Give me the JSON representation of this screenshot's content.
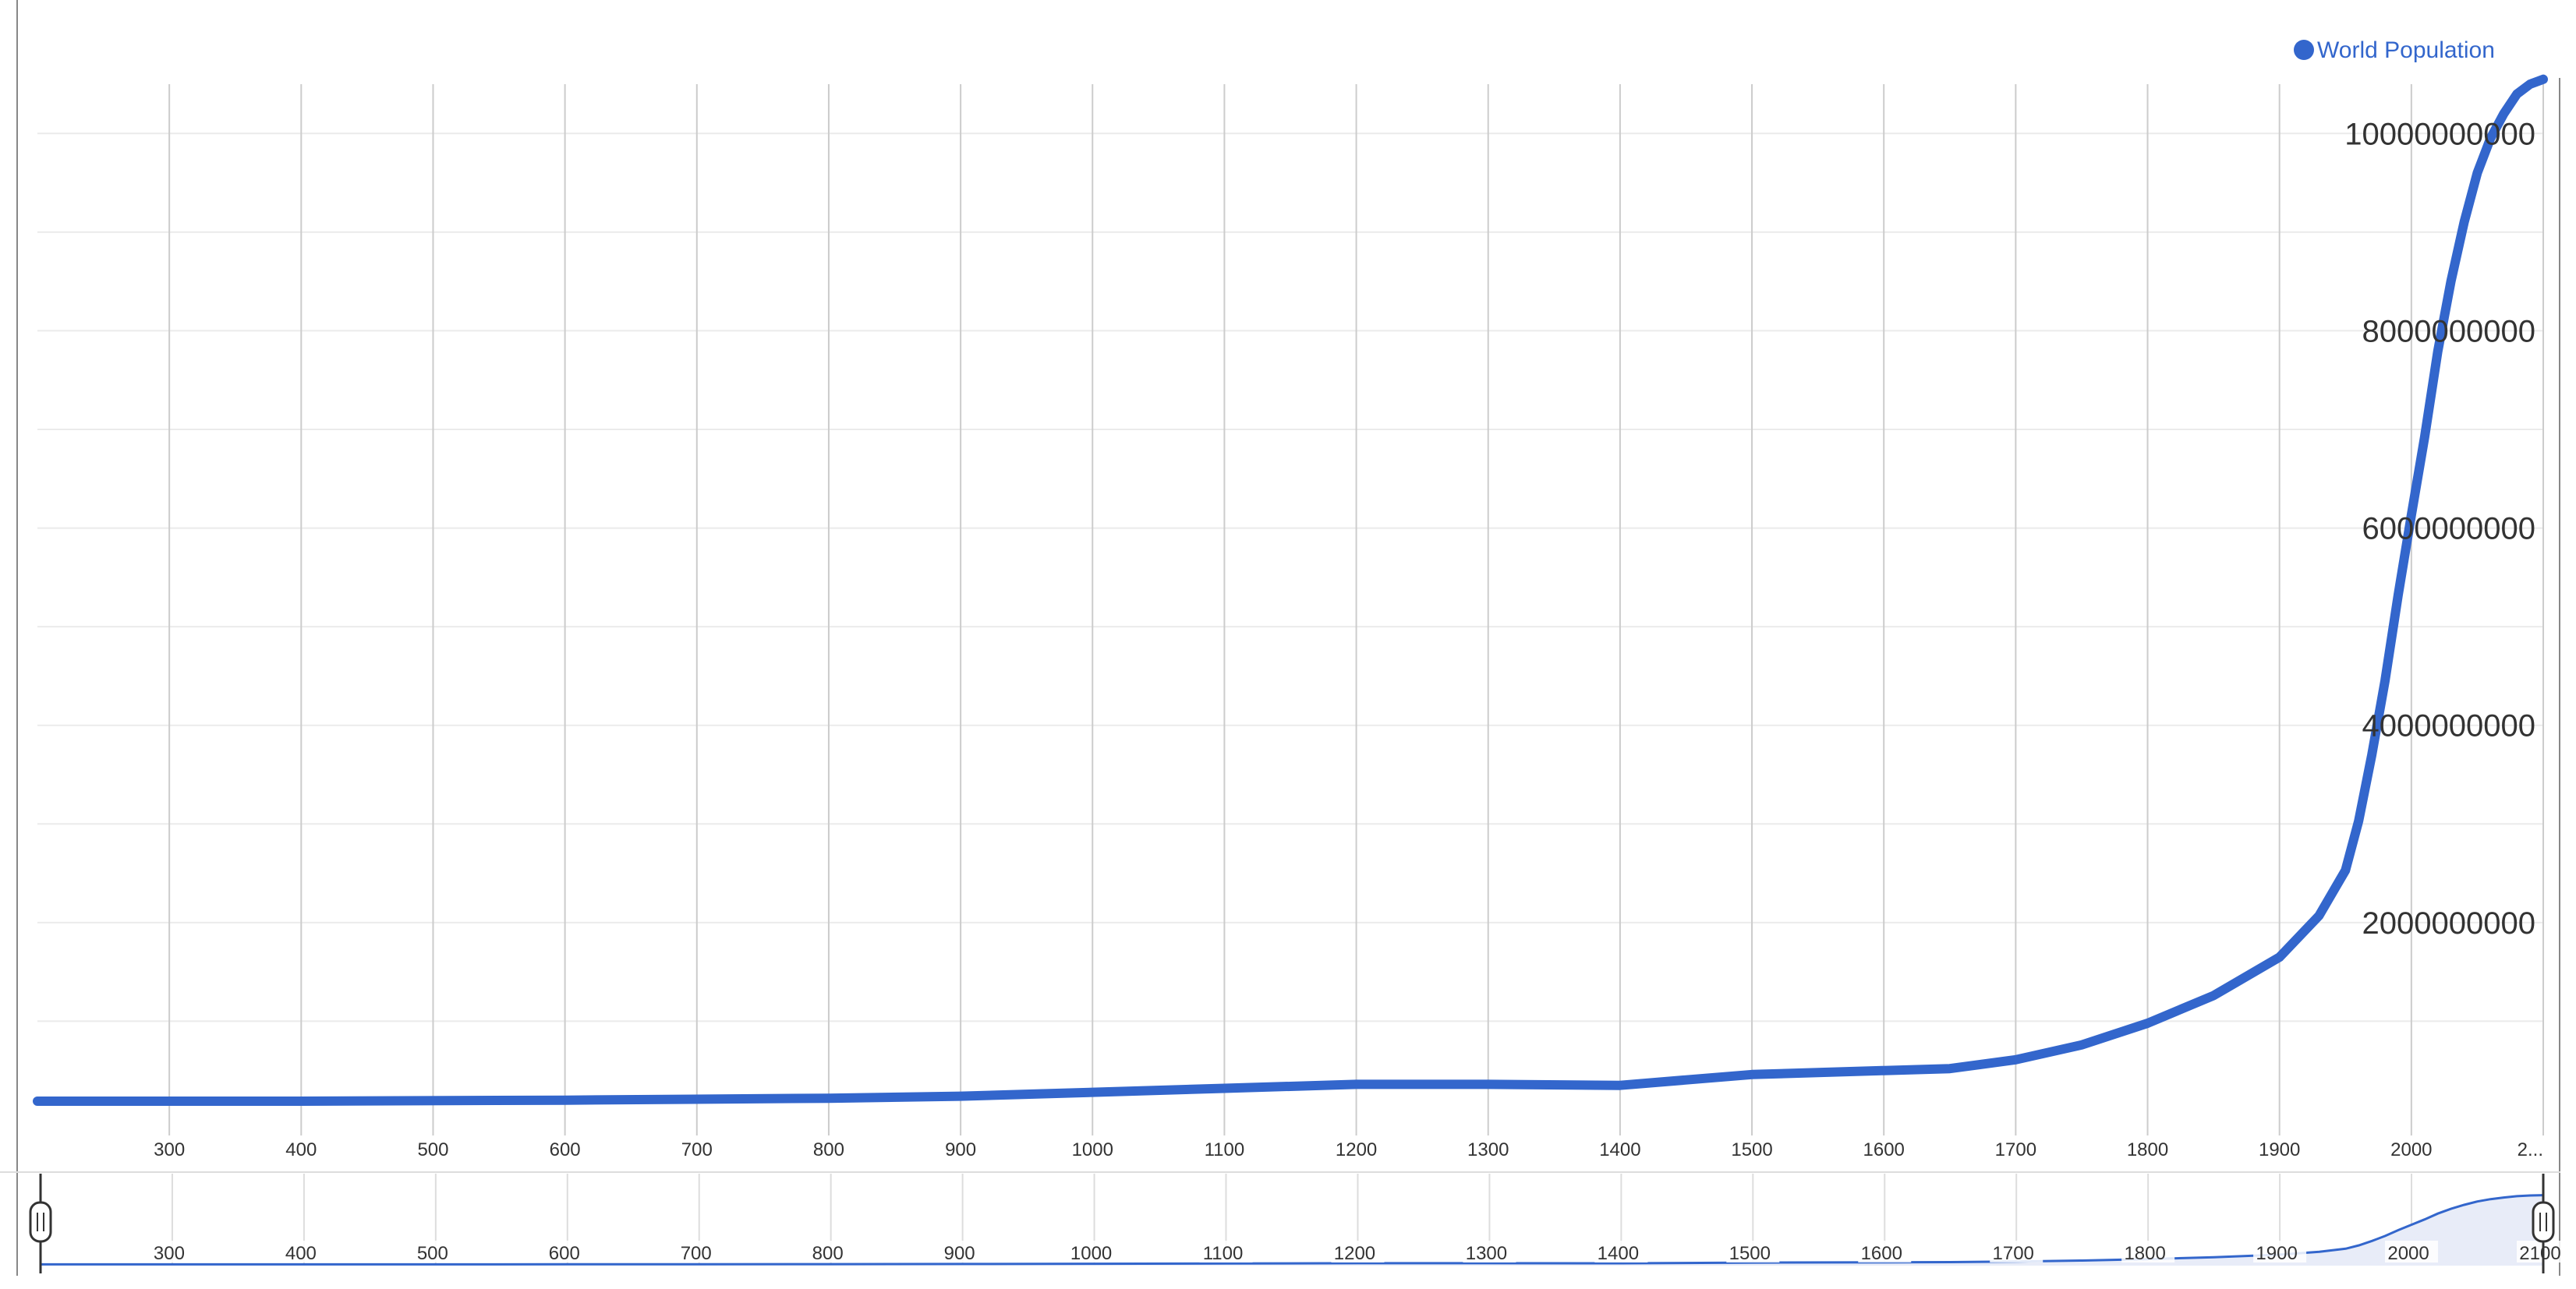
{
  "chart_data": {
    "type": "line",
    "title": "",
    "xlabel": "",
    "ylabel": "",
    "xlim": [
      200,
      2100
    ],
    "ylim": [
      0,
      10500000000
    ],
    "grid": true,
    "legend_position": "top-right",
    "x_ticks": [
      "300",
      "400",
      "500",
      "600",
      "700",
      "800",
      "900",
      "1000",
      "1100",
      "1200",
      "1300",
      "1400",
      "1500",
      "1600",
      "1700",
      "1800",
      "1900",
      "2000",
      "2..."
    ],
    "x_tick_values": [
      300,
      400,
      500,
      600,
      700,
      800,
      900,
      1000,
      1100,
      1200,
      1300,
      1400,
      1500,
      1600,
      1700,
      1800,
      1900,
      2000,
      2100
    ],
    "y_ticks": [
      "2000000000",
      "4000000000",
      "6000000000",
      "8000000000",
      "10000000000"
    ],
    "y_tick_values": [
      2000000000,
      4000000000,
      6000000000,
      8000000000,
      10000000000
    ],
    "series": [
      {
        "name": "World Population",
        "color": "#3366cc",
        "x": [
          200,
          400,
          600,
          800,
          900,
          1000,
          1100,
          1200,
          1300,
          1400,
          1500,
          1600,
          1650,
          1700,
          1750,
          1800,
          1850,
          1900,
          1930,
          1950,
          1960,
          1970,
          1980,
          1990,
          2000,
          2010,
          2020,
          2030,
          2040,
          2050,
          2060,
          2070,
          2080,
          2090,
          2100
        ],
        "values": [
          190000000,
          190000000,
          200000000,
          220000000,
          240000000,
          280000000,
          320000000,
          360000000,
          360000000,
          350000000,
          460000000,
          500000000,
          520000000,
          610000000,
          760000000,
          980000000,
          1260000000,
          1650000000,
          2070000000,
          2530000000,
          3030000000,
          3700000000,
          4450000000,
          5320000000,
          6130000000,
          6920000000,
          7790000000,
          8500000000,
          9100000000,
          9600000000,
          9950000000,
          10200000000,
          10400000000,
          10500000000,
          10550000000
        ]
      }
    ]
  },
  "navigator": {
    "ticks": [
      "300",
      "400",
      "500",
      "600",
      "700",
      "800",
      "900",
      "1000",
      "1100",
      "1200",
      "1300",
      "1400",
      "1500",
      "1600",
      "1700",
      "1800",
      "1900",
      "2000",
      "2100"
    ],
    "left_handle_icon": "drag-handle-icon",
    "right_handle_icon": "drag-handle-icon"
  },
  "colors": {
    "series": "#3366cc",
    "grid_vertical": "#cccccc",
    "grid_horizontal": "#ebebeb",
    "navigator_fill": "#e8ecf8"
  }
}
